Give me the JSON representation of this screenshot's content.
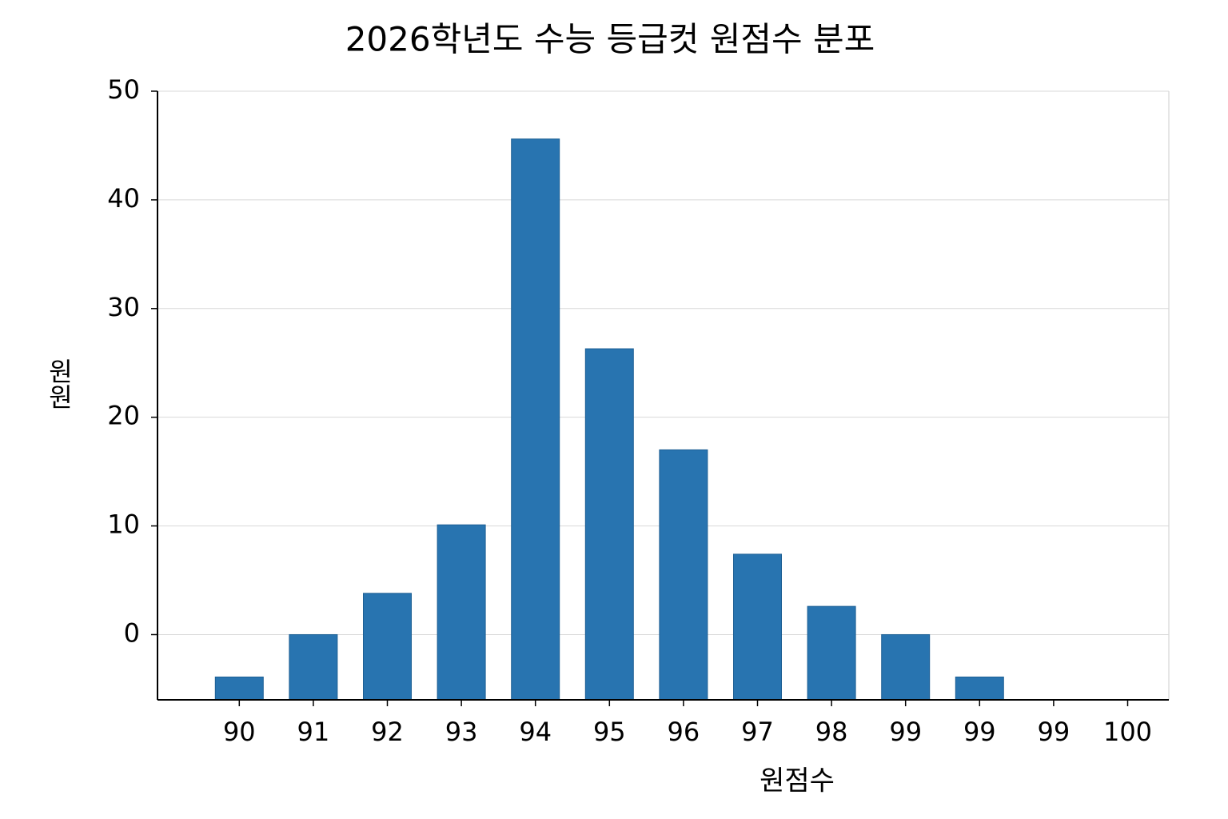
{
  "chart_data": {
    "type": "bar",
    "title": "2026학년도 수능 등급컷 원점수 분포",
    "x_label": "원점수",
    "y_label": "원원",
    "categories": [
      "90",
      "91",
      "92",
      "93",
      "94",
      "95",
      "96",
      "97",
      "98",
      "99",
      "99",
      "99",
      "100"
    ],
    "values": [
      -3.9,
      0,
      3.8,
      10.1,
      45.6,
      26.3,
      17,
      7.4,
      2.6,
      0,
      -3.9,
      null,
      null
    ],
    "color": "#2874b0",
    "ylim": [
      -6,
      50
    ],
    "yticks": [
      0,
      10,
      20,
      30,
      40,
      50
    ],
    "grid": true
  }
}
